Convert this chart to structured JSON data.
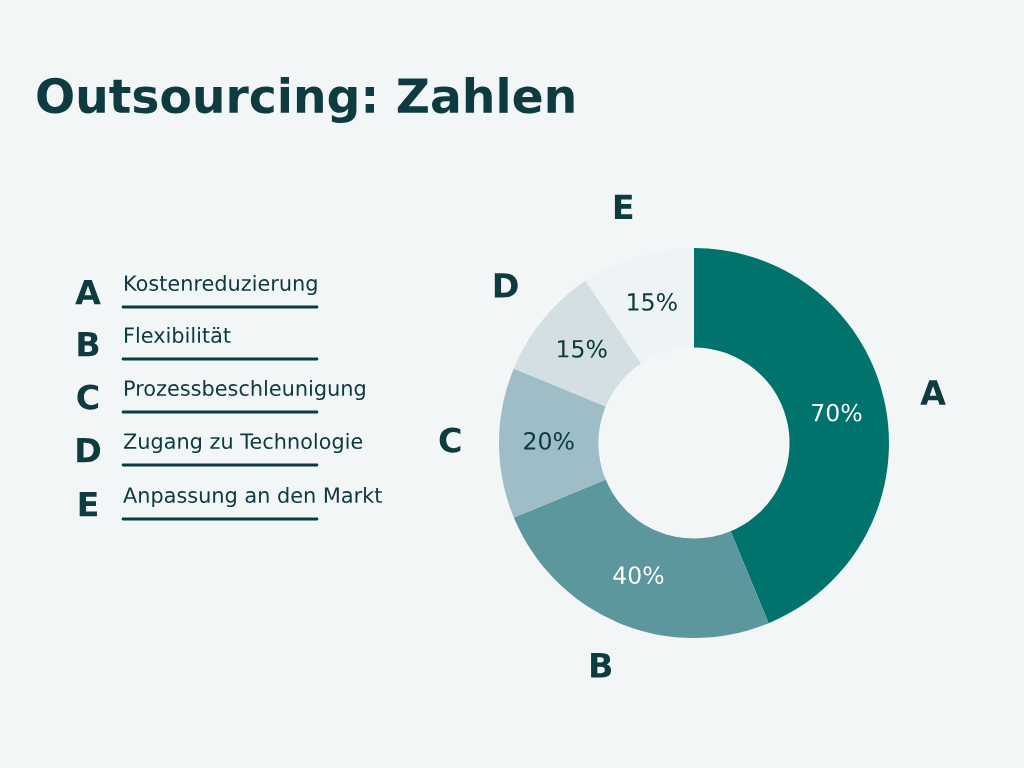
{
  "chart_data": {
    "type": "donut",
    "title": "Outsourcing: Zahlen",
    "categories": [
      "A",
      "B",
      "C",
      "D",
      "E"
    ],
    "values": [
      70,
      40,
      20,
      15,
      15
    ],
    "value_labels": [
      "70%",
      "40%",
      "20%",
      "15%",
      "15%"
    ],
    "colors": [
      "#00736c",
      "#5c979e",
      "#9ebdc6",
      "#d3dfe2",
      "#eef4f5"
    ],
    "annotations": [
      "Kostenreduzierung",
      "Flexibilität",
      "Prozessbeschleunigung",
      "Zugang zu Technologie",
      "Anpassung an den Markt"
    ]
  }
}
